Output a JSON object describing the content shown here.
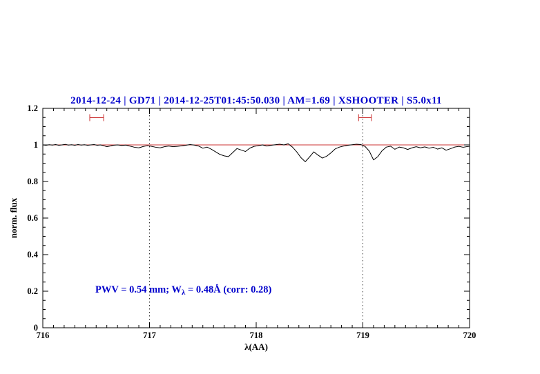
{
  "chart_data": {
    "type": "line",
    "title": "2014-12-24 | GD71 | 2014-12-25T01:45:50.030 | AM=1.69 | XSHOOTER | S5.0x11",
    "xlabel": "λ(AA)",
    "ylabel": "norm. flux",
    "xlim": [
      716,
      720
    ],
    "ylim": [
      0,
      1.2
    ],
    "x_major_ticks": [
      716,
      717,
      718,
      719,
      720
    ],
    "x_tick_labels": [
      "716",
      "717",
      "718",
      "719",
      "720"
    ],
    "x_minor_step": 0.1,
    "y_major_ticks": [
      0,
      0.2,
      0.4,
      0.6,
      0.8,
      1,
      1.2
    ],
    "y_tick_labels": [
      "0",
      "0.2",
      "0.4",
      "0.6",
      "0.8",
      "1",
      "1.2"
    ],
    "y_minor_step": 0.05,
    "grid": "dotted vertical lines at 717 and 719",
    "vlines": [
      717,
      719
    ],
    "continuum": {
      "y": 1.0
    },
    "band_markers": [
      {
        "x1": 716.44,
        "x2": 716.57,
        "y": 1.149
      },
      {
        "x1": 718.96,
        "x2": 719.08,
        "y": 1.149
      }
    ],
    "colors": {
      "title": "#0000cc",
      "annotation": "#0000cc",
      "spectrum": "#000000",
      "continuum": "#cc3333",
      "markers": "#cc3333",
      "frame": "#000000",
      "vline": "#333333"
    },
    "annotation": {
      "pre": "PWV = 0.54 mm; W",
      "sub": "λ",
      "post": " = 0.48Å (corr: 0.28)"
    },
    "series": [
      {
        "name": "spectrum",
        "points": [
          [
            716.0,
            1.0
          ],
          [
            716.03,
            0.998
          ],
          [
            716.06,
            1.001
          ],
          [
            716.09,
            0.999
          ],
          [
            716.12,
            1.002
          ],
          [
            716.15,
            0.998
          ],
          [
            716.18,
            1.0
          ],
          [
            716.21,
            1.003
          ],
          [
            716.24,
            0.999
          ],
          [
            716.27,
            1.001
          ],
          [
            716.3,
            0.998
          ],
          [
            716.33,
            1.002
          ],
          [
            716.36,
            0.999
          ],
          [
            716.39,
            1.001
          ],
          [
            716.42,
            0.998
          ],
          [
            716.45,
            1.0
          ],
          [
            716.48,
            1.002
          ],
          [
            716.51,
            0.998
          ],
          [
            716.54,
            1.0
          ],
          [
            716.57,
            0.996
          ],
          [
            716.6,
            0.99
          ],
          [
            716.63,
            0.994
          ],
          [
            716.66,
            0.998
          ],
          [
            716.7,
            1.0
          ],
          [
            716.74,
            0.997
          ],
          [
            716.78,
            0.999
          ],
          [
            716.82,
            0.993
          ],
          [
            716.86,
            0.987
          ],
          [
            716.9,
            0.984
          ],
          [
            716.94,
            0.991
          ],
          [
            716.98,
            0.996
          ],
          [
            717.02,
            0.992
          ],
          [
            717.06,
            0.987
          ],
          [
            717.1,
            0.984
          ],
          [
            717.14,
            0.99
          ],
          [
            717.18,
            0.994
          ],
          [
            717.22,
            0.99
          ],
          [
            717.26,
            0.992
          ],
          [
            717.3,
            0.995
          ],
          [
            717.34,
            0.998
          ],
          [
            717.38,
            1.002
          ],
          [
            717.42,
            0.999
          ],
          [
            717.46,
            0.994
          ],
          [
            717.5,
            0.982
          ],
          [
            717.54,
            0.988
          ],
          [
            717.58,
            0.976
          ],
          [
            717.62,
            0.962
          ],
          [
            717.66,
            0.948
          ],
          [
            717.7,
            0.94
          ],
          [
            717.74,
            0.936
          ],
          [
            717.78,
            0.958
          ],
          [
            717.82,
            0.98
          ],
          [
            717.86,
            0.972
          ],
          [
            717.9,
            0.964
          ],
          [
            717.94,
            0.982
          ],
          [
            717.98,
            0.992
          ],
          [
            718.02,
            0.996
          ],
          [
            718.06,
            1.0
          ],
          [
            718.1,
            0.994
          ],
          [
            718.14,
            0.998
          ],
          [
            718.18,
            1.001
          ],
          [
            718.22,
            1.004
          ],
          [
            718.26,
            1.0
          ],
          [
            718.3,
            1.006
          ],
          [
            718.34,
            0.988
          ],
          [
            718.38,
            0.962
          ],
          [
            718.42,
            0.93
          ],
          [
            718.46,
            0.908
          ],
          [
            718.5,
            0.934
          ],
          [
            718.54,
            0.962
          ],
          [
            718.58,
            0.944
          ],
          [
            718.62,
            0.928
          ],
          [
            718.66,
            0.938
          ],
          [
            718.7,
            0.956
          ],
          [
            718.74,
            0.978
          ],
          [
            718.78,
            0.988
          ],
          [
            718.82,
            0.994
          ],
          [
            718.86,
            0.998
          ],
          [
            718.9,
            1.001
          ],
          [
            718.94,
            1.004
          ],
          [
            718.98,
            1.002
          ],
          [
            719.02,
            0.992
          ],
          [
            719.06,
            0.966
          ],
          [
            719.1,
            0.918
          ],
          [
            719.14,
            0.936
          ],
          [
            719.18,
            0.968
          ],
          [
            719.22,
            0.988
          ],
          [
            719.26,
            0.993
          ],
          [
            719.3,
            0.976
          ],
          [
            719.34,
            0.988
          ],
          [
            719.38,
            0.984
          ],
          [
            719.42,
            0.975
          ],
          [
            719.46,
            0.984
          ],
          [
            719.5,
            0.99
          ],
          [
            719.54,
            0.984
          ],
          [
            719.58,
            0.989
          ],
          [
            719.62,
            0.982
          ],
          [
            719.66,
            0.987
          ],
          [
            719.7,
            0.977
          ],
          [
            719.74,
            0.984
          ],
          [
            719.78,
            0.971
          ],
          [
            719.82,
            0.979
          ],
          [
            719.86,
            0.988
          ],
          [
            719.9,
            0.992
          ],
          [
            719.94,
            0.987
          ],
          [
            719.98,
            0.991
          ],
          [
            720.0,
            0.992
          ]
        ]
      }
    ]
  }
}
